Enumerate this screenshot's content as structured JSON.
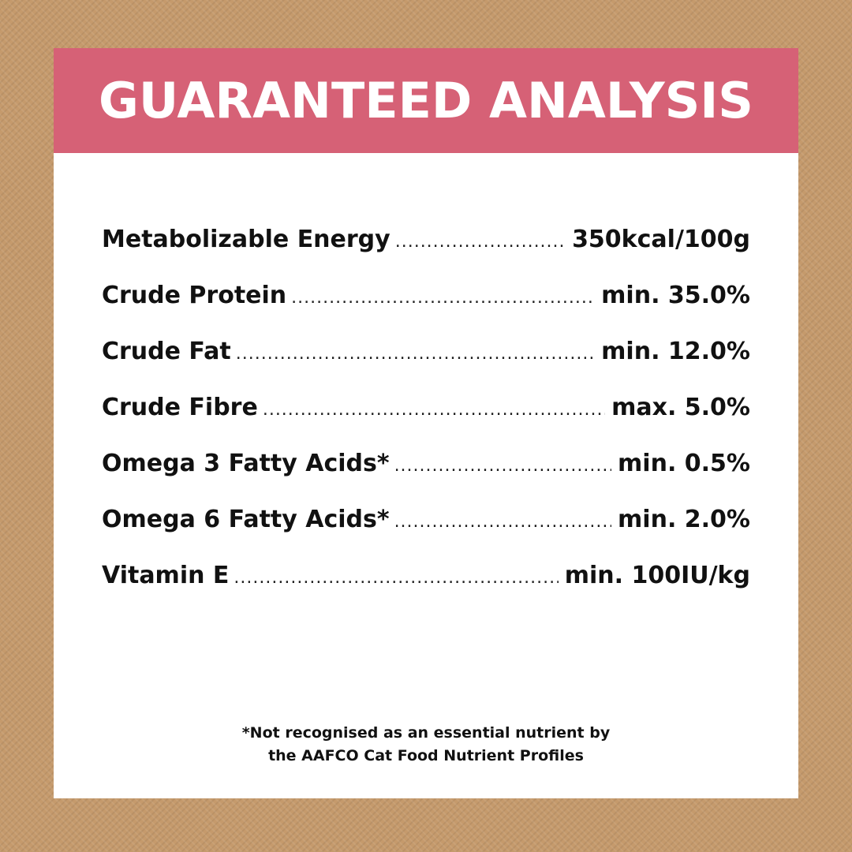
{
  "header": {
    "title": "GUARANTEED ANALYSIS"
  },
  "analysis": {
    "rows": [
      {
        "name": "Metabolizable Energy",
        "value": "350kcal/100g"
      },
      {
        "name": "Crude Protein",
        "value": "min. 35.0%"
      },
      {
        "name": "Crude Fat",
        "value": "min. 12.0%"
      },
      {
        "name": "Crude Fibre",
        "value": "max. 5.0%"
      },
      {
        "name": "Omega 3 Fatty Acids*",
        "value": "min. 0.5%"
      },
      {
        "name": "Omega 6 Fatty Acids*",
        "value": "min. 2.0%"
      },
      {
        "name": "Vitamin E",
        "value": "min. 100IU/kg"
      }
    ]
  },
  "footnote": {
    "line1": "*Not recognised as an essential nutrient by",
    "line2": "the AAFCO Cat Food Nutrient Profiles"
  },
  "colors": {
    "background": "#c59a6c",
    "header": "#d66176",
    "panel": "#ffffff",
    "text": "#111111"
  }
}
